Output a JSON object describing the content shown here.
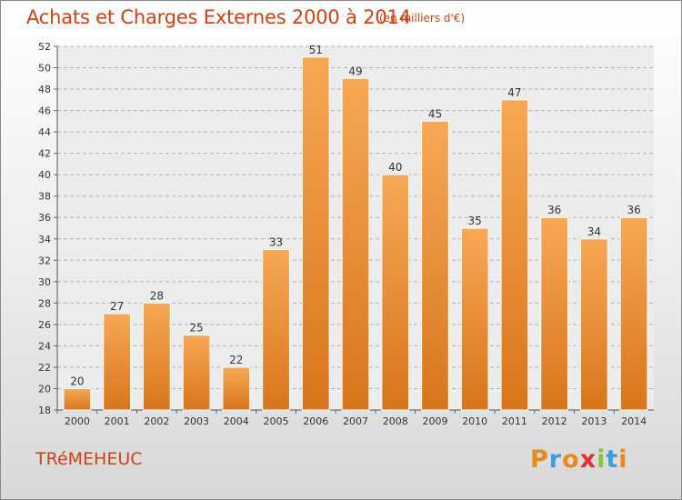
{
  "title": "Achats et Charges Externes 2000 à 2014",
  "subtitle": "(en milliers d'€)",
  "town": "TRéMEHEUC",
  "logo": {
    "letters": [
      "P",
      "r",
      "o",
      "x",
      "i",
      "t",
      "i"
    ],
    "colors": [
      "#e8891a",
      "#3aa0d8",
      "#e8891a",
      "#e03030",
      "#8ac43c",
      "#3aa0d8",
      "#e8891a"
    ]
  },
  "colors": {
    "title": "#d04010",
    "bar_light": "#f7a855",
    "bar_dark": "#d8751c"
  },
  "chart_data": {
    "type": "bar",
    "title": "Achats et Charges Externes 2000 à 2014",
    "subtitle": "(en milliers d'€)",
    "xlabel": "",
    "ylabel": "",
    "categories": [
      "2000",
      "2001",
      "2002",
      "2003",
      "2004",
      "2005",
      "2006",
      "2007",
      "2008",
      "2009",
      "2010",
      "2011",
      "2012",
      "2013",
      "2014"
    ],
    "values": [
      20,
      27,
      28,
      25,
      22,
      33,
      51,
      49,
      40,
      45,
      35,
      47,
      36,
      34,
      36
    ],
    "ylim": [
      18,
      52
    ],
    "yticks": [
      18,
      20,
      22,
      24,
      26,
      28,
      30,
      32,
      34,
      36,
      38,
      40,
      42,
      44,
      46,
      48,
      50,
      52
    ],
    "grid": true,
    "legend": "none"
  }
}
